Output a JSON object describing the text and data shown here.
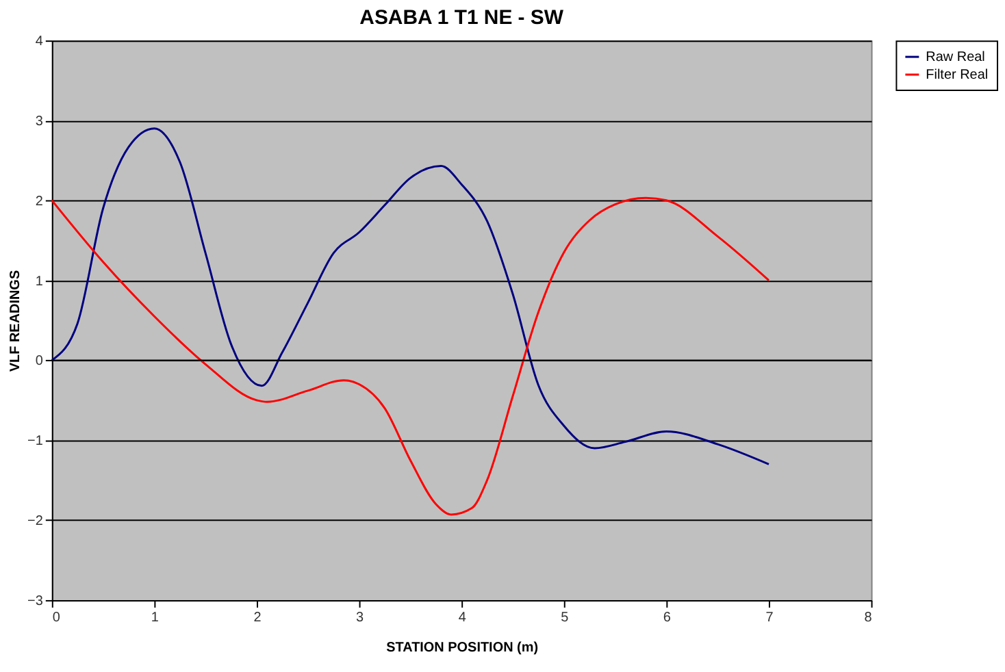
{
  "chart_data": {
    "type": "line",
    "title": "ASABA 1 T1   NE - SW",
    "xlabel": "STATION POSITION (m)",
    "ylabel": "VLF READINGS",
    "xlim": [
      0,
      8
    ],
    "xticks": [
      0,
      1,
      2,
      3,
      4,
      5,
      6,
      7,
      8
    ],
    "ylim": [
      -3,
      4
    ],
    "yticks": [
      -3,
      -2,
      -1,
      0,
      1,
      2,
      3,
      4
    ],
    "grid": "y",
    "legend": "right",
    "marker": "none",
    "line_style": "solid",
    "series": [
      {
        "name": "Raw Real",
        "color": "#000080",
        "x": [
          0,
          0.25,
          0.5,
          0.75,
          1,
          1.25,
          1.5,
          1.75,
          2.05,
          2.25,
          2.5,
          2.75,
          3,
          3.25,
          3.5,
          3.8,
          4,
          4.25,
          4.5,
          4.75,
          5,
          5.3,
          5.6,
          6,
          6.5,
          7
        ],
        "values": [
          0,
          0.46,
          1.9,
          2.67,
          2.9,
          2.48,
          1.34,
          0.2,
          -0.32,
          0.1,
          0.72,
          1.34,
          1.6,
          1.94,
          2.28,
          2.43,
          2.2,
          1.74,
          0.83,
          -0.31,
          -0.82,
          -1.1,
          -1.02,
          -0.89,
          -1.05,
          -1.3
        ]
      },
      {
        "name": "Filter Real",
        "color": "#ff0000",
        "x": [
          0,
          0.5,
          1,
          1.5,
          2,
          2.1,
          2.5,
          2.85,
          3,
          3.25,
          3.5,
          3.75,
          3.9,
          4.1,
          4.25,
          4.5,
          4.75,
          5,
          5.25,
          5.5,
          5.8,
          6,
          6.5,
          7
        ],
        "values": [
          2,
          1.23,
          0.55,
          -0.05,
          -0.5,
          -0.52,
          -0.38,
          -0.25,
          -0.3,
          -0.6,
          -1.25,
          -1.8,
          -1.93,
          -1.85,
          -1.5,
          -0.45,
          0.6,
          1.35,
          1.75,
          1.95,
          2.03,
          2.0,
          1.55,
          1.0
        ]
      }
    ]
  }
}
